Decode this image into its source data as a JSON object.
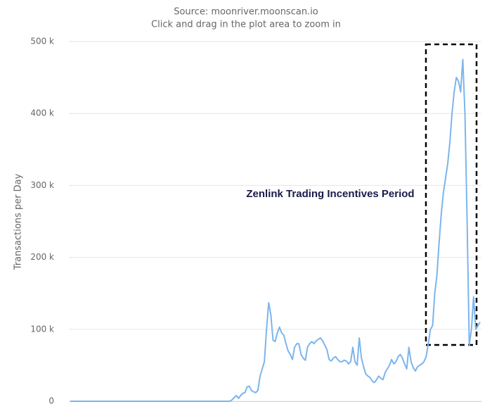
{
  "chart_data": {
    "type": "line",
    "subtitle": [
      "Source: moonriver.moonscan.io",
      "Click and drag in the plot area to zoom in"
    ],
    "y_label": "Transactions per Day",
    "annotation": "Zenlink Trading Incentives Period",
    "ylim": [
      0,
      500000
    ],
    "yticks": [
      0,
      {
        "value": 100000,
        "label": "100 k"
      },
      {
        "value": 200000,
        "label": "200 k"
      },
      {
        "value": 300000,
        "label": "300 k"
      },
      {
        "value": 400000,
        "label": "400 k"
      },
      {
        "value": 500000,
        "label": "500 k"
      }
    ],
    "grid": true,
    "series": [
      {
        "color": "#7cb5ec",
        "values": [
          0,
          0,
          0,
          0,
          0,
          0,
          0,
          0,
          0,
          0,
          0,
          0,
          0,
          0,
          0,
          0,
          0,
          0,
          0,
          0,
          0,
          0,
          0,
          0,
          0,
          0,
          0,
          0,
          0,
          0,
          0,
          0,
          0,
          0,
          0,
          0,
          0,
          0,
          0,
          0,
          0,
          0,
          0,
          0,
          0,
          0,
          0,
          0,
          0,
          0,
          0,
          0,
          0,
          0,
          0,
          0,
          0,
          0,
          0,
          0,
          0,
          0,
          0,
          0,
          0,
          0,
          0,
          0,
          0,
          0,
          0,
          0,
          0,
          0,
          0,
          2000,
          5000,
          8000,
          4000,
          8000,
          11000,
          12000,
          20000,
          21000,
          15000,
          13000,
          12000,
          15000,
          35000,
          45000,
          55000,
          100000,
          137000,
          120000,
          85000,
          83000,
          95000,
          103000,
          95000,
          92000,
          80000,
          70000,
          65000,
          58000,
          75000,
          80000,
          80000,
          65000,
          60000,
          57000,
          75000,
          80000,
          83000,
          80000,
          84000,
          86000,
          88000,
          84000,
          78000,
          72000,
          58000,
          56000,
          60000,
          62000,
          58000,
          55000,
          55000,
          57000,
          56000,
          52000,
          55000,
          75000,
          55000,
          50000,
          88000,
          60000,
          48000,
          38000,
          35000,
          33000,
          28000,
          26000,
          30000,
          35000,
          32000,
          30000,
          40000,
          45000,
          50000,
          58000,
          52000,
          55000,
          62000,
          65000,
          60000,
          52000,
          45000,
          75000,
          55000,
          47000,
          42000,
          48000,
          50000,
          52000,
          55000,
          62000,
          80000,
          100000,
          105000,
          150000,
          175000,
          220000,
          260000,
          290000,
          310000,
          330000,
          360000,
          400000,
          430000,
          450000,
          445000,
          430000,
          475000,
          400000,
          250000,
          78000,
          100000,
          145000,
          100000,
          105000,
          110000
        ]
      }
    ]
  }
}
